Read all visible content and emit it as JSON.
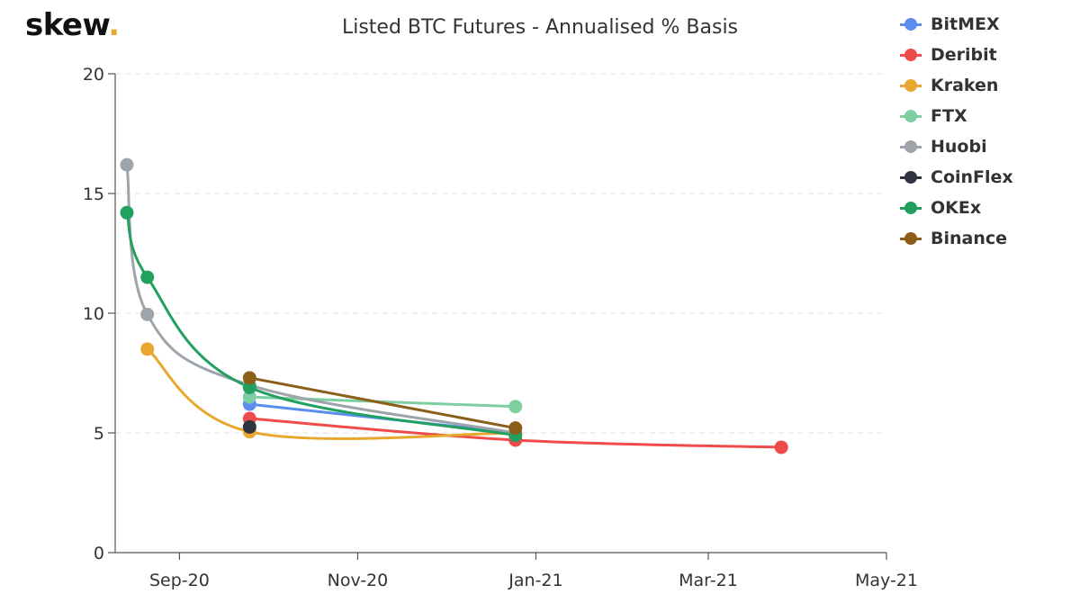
{
  "logo": {
    "text": "skew",
    "dot": "."
  },
  "chart_data": {
    "type": "line",
    "title": "Listed BTC Futures - Annualised % Basis",
    "xlabel": "",
    "ylabel": "",
    "xlim": [
      "2020-08-10",
      "2021-05-01"
    ],
    "ylim": [
      0,
      20
    ],
    "yticks": [
      0,
      5,
      10,
      15,
      20
    ],
    "xticks": [
      {
        "date": "2020-09-01",
        "label": "Sep-20"
      },
      {
        "date": "2020-11-01",
        "label": "Nov-20"
      },
      {
        "date": "2021-01-01",
        "label": "Jan-21"
      },
      {
        "date": "2021-03-01",
        "label": "Mar-21"
      },
      {
        "date": "2021-05-01",
        "label": "May-21"
      }
    ],
    "grid": "horizontal dashed",
    "legend_position": "top-right",
    "series": [
      {
        "name": "BitMEX",
        "color": "#5b8def",
        "points": [
          {
            "x": "2020-09-25",
            "y": 6.2
          },
          {
            "x": "2020-12-25",
            "y": 5.0
          }
        ]
      },
      {
        "name": "Deribit",
        "color": "#f04b4b",
        "points": [
          {
            "x": "2020-09-25",
            "y": 5.6
          },
          {
            "x": "2020-12-25",
            "y": 4.7
          },
          {
            "x": "2021-03-26",
            "y": 4.4
          }
        ]
      },
      {
        "name": "Kraken",
        "color": "#e8a830",
        "points": [
          {
            "x": "2020-08-21",
            "y": 8.5
          },
          {
            "x": "2020-09-25",
            "y": 5.05
          },
          {
            "x": "2020-12-25",
            "y": 5.0
          }
        ]
      },
      {
        "name": "FTX",
        "color": "#7dcea0",
        "points": [
          {
            "x": "2020-09-25",
            "y": 6.5
          },
          {
            "x": "2020-12-25",
            "y": 6.1
          }
        ]
      },
      {
        "name": "Huobi",
        "color": "#9ea4ab",
        "points": [
          {
            "x": "2020-08-14",
            "y": 16.2
          },
          {
            "x": "2020-08-21",
            "y": 9.95
          },
          {
            "x": "2020-09-25",
            "y": 7.0
          },
          {
            "x": "2020-12-25",
            "y": 5.0
          }
        ]
      },
      {
        "name": "CoinFlex",
        "color": "#2e3440",
        "points": [
          {
            "x": "2020-09-25",
            "y": 5.25
          }
        ]
      },
      {
        "name": "OKEx",
        "color": "#22a060",
        "points": [
          {
            "x": "2020-08-14",
            "y": 14.2
          },
          {
            "x": "2020-08-21",
            "y": 11.5
          },
          {
            "x": "2020-09-25",
            "y": 6.9
          },
          {
            "x": "2020-12-25",
            "y": 4.9
          }
        ]
      },
      {
        "name": "Binance",
        "color": "#8b5e1a",
        "points": [
          {
            "x": "2020-09-25",
            "y": 7.3
          },
          {
            "x": "2020-12-25",
            "y": 5.2
          }
        ]
      }
    ]
  }
}
